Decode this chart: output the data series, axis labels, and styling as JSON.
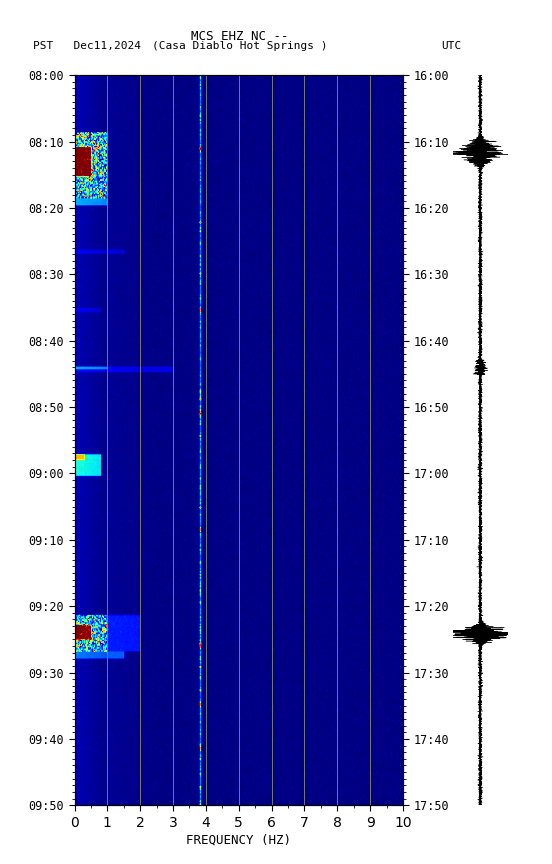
{
  "title_line1": "MCS EHZ NC --",
  "title_line2_left": "PST   Dec11,2024",
  "title_line2_center": "(Casa Diablo Hot Springs )",
  "title_line2_right": "UTC",
  "left_ylabel_times": [
    "08:00",
    "08:10",
    "08:20",
    "08:30",
    "08:40",
    "08:50",
    "09:00",
    "09:10",
    "09:20",
    "09:30",
    "09:40",
    "09:50"
  ],
  "right_ylabel_times": [
    "16:00",
    "16:10",
    "16:20",
    "16:30",
    "16:40",
    "16:50",
    "17:00",
    "17:10",
    "17:20",
    "17:30",
    "17:40",
    "17:50"
  ],
  "xlabel": "FREQUENCY (HZ)",
  "xmin": 0,
  "xmax": 10,
  "xticks": [
    0,
    1,
    2,
    3,
    4,
    5,
    6,
    7,
    8,
    9,
    10
  ],
  "freq_lines_gray": [
    1.0,
    2.0,
    3.0,
    5.0,
    6.0,
    7.0,
    8.0,
    9.0
  ],
  "fig_width": 5.52,
  "fig_height": 8.64,
  "dpi": 100,
  "colormap": "jet",
  "vmin": 0.0,
  "vmax": 6.0,
  "n_time_bins": 500,
  "n_freq_bins": 400,
  "noise_seed": 7
}
